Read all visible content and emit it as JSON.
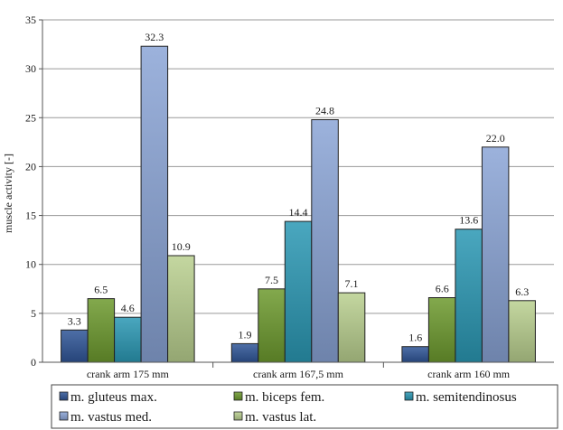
{
  "chart_data": {
    "type": "bar",
    "title": "",
    "xlabel": "",
    "ylabel": "muscle activity [-]",
    "ylim": [
      0,
      35
    ],
    "yticks": [
      0,
      5,
      10,
      15,
      20,
      25,
      30,
      35
    ],
    "grid": true,
    "legend_position": "bottom",
    "categories": [
      "crank arm 175 mm",
      "crank arm 167,5 mm",
      "crank arm 160 mm"
    ],
    "series": [
      {
        "name": "m. gluteus max.",
        "color": "#2f5597",
        "values": [
          3.3,
          1.9,
          1.6
        ],
        "labels": [
          "3.3",
          "1.9",
          "1.6"
        ]
      },
      {
        "name": "m. biceps fem.",
        "color": "#6d9a2e",
        "values": [
          6.5,
          7.5,
          6.6
        ],
        "labels": [
          "6.5",
          "7.5",
          "6.6"
        ]
      },
      {
        "name": "m. semitendinosus",
        "color": "#2a98b4",
        "values": [
          4.6,
          14.4,
          13.6
        ],
        "labels": [
          "4.6",
          "14.4",
          "13.6"
        ]
      },
      {
        "name": "m. vastus med.",
        "color": "#8aa4d6",
        "values": [
          32.3,
          24.8,
          22.0
        ],
        "labels": [
          "32.3",
          "24.8",
          "22.0"
        ]
      },
      {
        "name": "m. vastus lat.",
        "color": "#b9d08f",
        "values": [
          10.9,
          7.1,
          6.3
        ],
        "labels": [
          "10.9",
          "7.1",
          "6.3"
        ]
      }
    ]
  }
}
